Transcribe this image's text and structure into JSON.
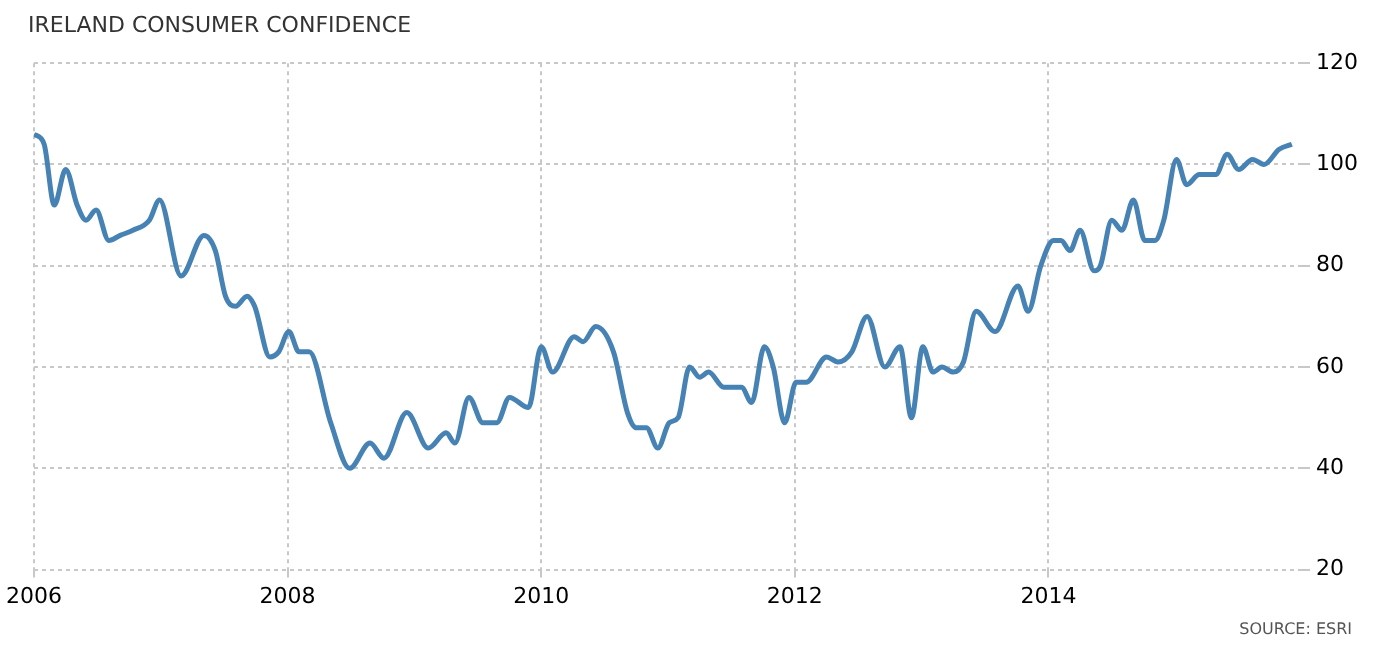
{
  "chart_data": {
    "type": "line",
    "title": "IRELAND CONSUMER CONFIDENCE",
    "annotations": [
      "SOURCE: ESRI"
    ],
    "x": [
      2006.0,
      2006.08,
      2006.16,
      2006.25,
      2006.34,
      2006.41,
      2006.49,
      2006.59,
      2006.68,
      2006.78,
      2006.91,
      2006.99,
      2007.16,
      2007.34,
      2007.43,
      2007.51,
      2007.59,
      2007.68,
      2007.74,
      2007.86,
      2007.93,
      2008.01,
      2008.09,
      2008.17,
      2008.34,
      2008.49,
      2008.65,
      2008.76,
      2008.94,
      2009.11,
      2009.25,
      2009.32,
      2009.43,
      2009.54,
      2009.65,
      2009.75,
      2009.9,
      2010.0,
      2010.09,
      2010.26,
      2010.33,
      2010.43,
      2010.57,
      2010.68,
      2010.75,
      2010.83,
      2010.92,
      2011.01,
      2011.08,
      2011.17,
      2011.25,
      2011.32,
      2011.44,
      2011.58,
      2011.66,
      2011.76,
      2011.83,
      2011.92,
      2012.01,
      2012.09,
      2012.25,
      2012.34,
      2012.45,
      2012.57,
      2012.71,
      2012.83,
      2012.92,
      2013.01,
      2013.09,
      2013.16,
      2013.25,
      2013.33,
      2013.43,
      2013.58,
      2013.76,
      2013.84,
      2013.94,
      2014.04,
      2014.1,
      2014.17,
      2014.25,
      2014.36,
      2014.41,
      2014.5,
      2014.58,
      2014.67,
      2014.76,
      2014.84,
      2014.91,
      2015.01,
      2015.09,
      2015.19,
      2015.32,
      2015.41,
      2015.5,
      2015.61,
      2015.7,
      2015.82,
      2015.92
    ],
    "values": [
      106,
      104,
      92,
      99,
      92,
      89,
      91,
      85,
      86,
      87,
      89,
      93,
      78,
      86,
      83,
      74,
      72,
      74,
      72,
      62,
      63,
      67,
      63,
      63,
      49,
      40,
      45,
      42,
      51,
      44,
      47,
      45,
      54,
      49,
      49,
      54,
      52,
      64,
      59,
      66,
      65,
      68,
      63,
      51,
      48,
      48,
      44,
      49,
      50,
      60,
      58,
      59,
      56,
      56,
      53,
      64,
      60,
      49,
      57,
      57,
      62,
      61,
      63,
      70,
      60,
      64,
      50,
      64,
      59,
      60,
      59,
      61,
      71,
      67,
      76,
      71,
      80,
      85,
      85,
      83,
      87,
      79,
      80,
      89,
      87,
      93,
      85,
      85,
      89,
      101,
      96,
      98,
      98,
      102,
      99,
      101,
      100,
      103,
      104
    ],
    "color": "#4682b4",
    "xlim": [
      2006,
      2016
    ],
    "xticks": [
      2006,
      2008,
      2010,
      2012,
      2014
    ],
    "ylim": [
      20,
      120
    ],
    "yticks": [
      20,
      40,
      60,
      80,
      100,
      120
    ],
    "grid": true,
    "marker": "none",
    "line_style": "solid",
    "legend": false
  }
}
